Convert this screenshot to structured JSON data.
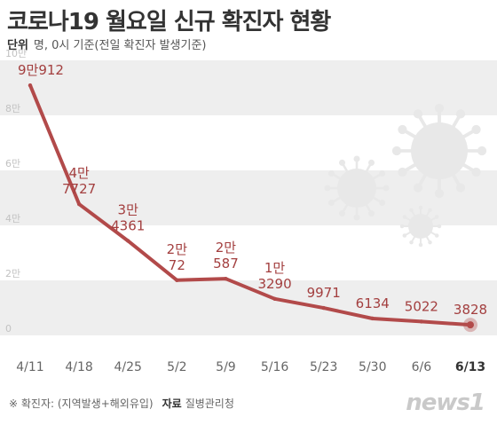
{
  "title": "코로나19 월요일 신규 확진자 현황",
  "unit": {
    "label": "단위",
    "text": "명, 0시 기준(전일 확진자 발생기준)"
  },
  "footnote": {
    "note": "※ 확진자: (지역발생+해외유입)",
    "source_label": "자료",
    "source": "질병관리청"
  },
  "logo": "news1",
  "colors": {
    "line": "#b24a4a",
    "label": "#a33f3f",
    "band": "#eeeeee",
    "virus": "#e8e8e8"
  },
  "chart_data": {
    "type": "line",
    "categories": [
      "4/11",
      "4/18",
      "4/25",
      "5/2",
      "5/9",
      "5/16",
      "5/23",
      "5/30",
      "6/6",
      "6/13"
    ],
    "values": [
      90912,
      47727,
      34361,
      20072,
      20587,
      13290,
      9971,
      6134,
      5022,
      3828
    ],
    "data_labels": [
      [
        "9만912"
      ],
      [
        "4만",
        "7727"
      ],
      [
        "3만",
        "4361"
      ],
      [
        "2만",
        "72"
      ],
      [
        "2만",
        "587"
      ],
      [
        "1만",
        "3290"
      ],
      [
        "9971"
      ],
      [
        "6134"
      ],
      [
        "5022"
      ],
      [
        "3828"
      ]
    ],
    "y_ticks": [
      0,
      20000,
      40000,
      60000,
      80000,
      100000
    ],
    "y_tick_labels": [
      "0",
      "2만",
      "4만",
      "6만",
      "8만",
      "10만"
    ],
    "ylim": [
      0,
      100000
    ],
    "grid": "alternating horizontal bands",
    "highlight_last": true
  }
}
